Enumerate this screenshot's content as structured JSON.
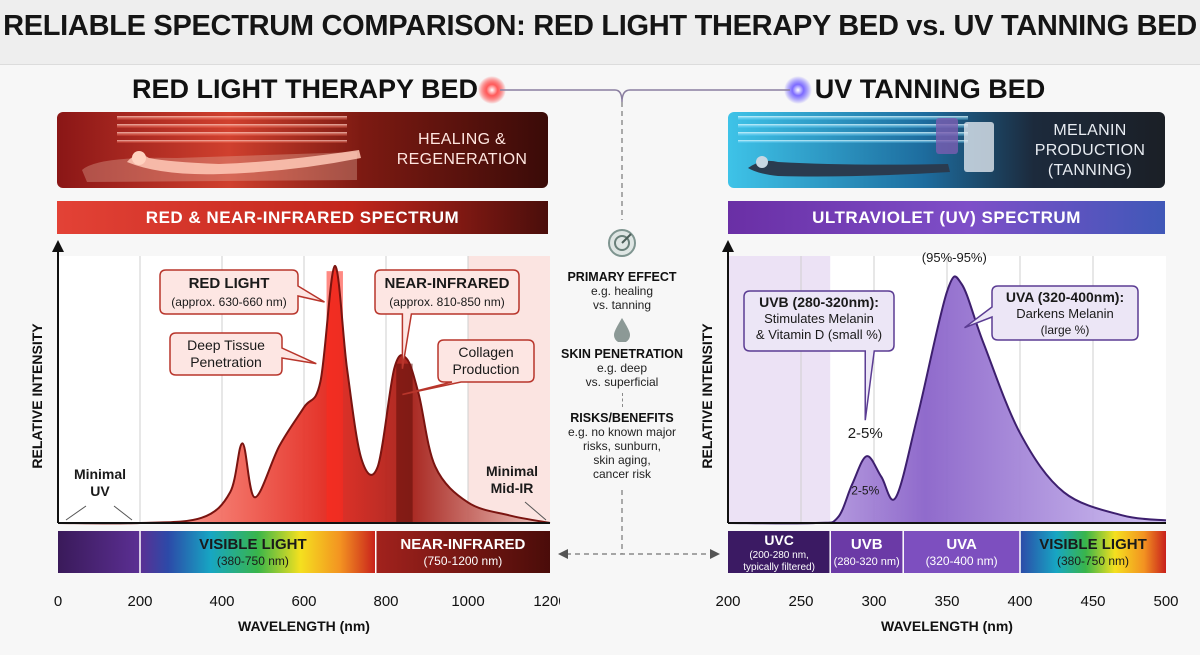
{
  "title": "RELIABLE SPECTRUM COMPARISON: RED LIGHT THERAPY BED vs. UV TANNING BED",
  "left": {
    "header": "RED LIGHT THERAPY BED",
    "banner_text": [
      "HEALING &",
      "REGENERATION"
    ],
    "spectrum_label": "RED & NEAR-INFRARED SPECTRUM",
    "ylabel": "RELATIVE INTENSITY",
    "xlabel": "WAVELENGTH (nm)"
  },
  "right": {
    "header": "UV TANNING BED",
    "banner_text": [
      "MELANIN",
      "PRODUCTION",
      "(TANNING)"
    ],
    "spectrum_label": "ULTRAVIOLET (UV) SPECTRUM",
    "ylabel": "RELATIVE INTENSITY",
    "xlabel": "WAVELENGTH (nm)"
  },
  "middle": {
    "items": [
      {
        "heading": "PRIMARY EFFECT",
        "lines": [
          "e.g. healing",
          "vs. tanning"
        ]
      },
      {
        "heading": "SKIN PENETRATION",
        "lines": [
          "e.g. deep",
          "vs. superficial"
        ]
      },
      {
        "heading": "RISKS/BENEFITS",
        "lines": [
          "e.g. no known major",
          "risks, sunburn,",
          "skin aging,",
          "cancer risk"
        ]
      }
    ]
  },
  "colors": {
    "red_accent": "#c0392b",
    "purple_accent": "#6a3fb5",
    "uv_fill": "#8a63c9"
  },
  "chart_data": [
    {
      "type": "area",
      "title": "",
      "xlabel": "WAVELENGTH (nm)",
      "ylabel": "RELATIVE INTENSITY",
      "xlim": [
        0,
        1200
      ],
      "xticks": [
        0,
        200,
        400,
        600,
        800,
        1000,
        1200
      ],
      "series": [
        {
          "values": [
            [
              0,
              0
            ],
            [
              200,
              0
            ],
            [
              350,
              0.02
            ],
            [
              420,
              0.12
            ],
            [
              450,
              0.31
            ],
            [
              480,
              0.1
            ],
            [
              540,
              0.3
            ],
            [
              600,
              0.45
            ],
            [
              640,
              0.55
            ],
            [
              675,
              1.0
            ],
            [
              705,
              0.6
            ],
            [
              740,
              0.25
            ],
            [
              780,
              0.22
            ],
            [
              820,
              0.6
            ],
            [
              850,
              0.64
            ],
            [
              880,
              0.5
            ],
            [
              920,
              0.22
            ],
            [
              1000,
              0.08
            ],
            [
              1100,
              0.03
            ],
            [
              1200,
              0.0
            ]
          ]
        }
      ],
      "regions": [
        {
          "label": "VISIBLE LIGHT",
          "sublabel": "(380-750 nm)",
          "from": 200,
          "to": 775
        },
        {
          "label": "NEAR-INFRARED",
          "sublabel": "(750-1200 nm)",
          "from": 775,
          "to": 1200
        }
      ],
      "annotations": [
        {
          "label": "RED LIGHT",
          "sublabel": "(approx. 630-660 nm)"
        },
        {
          "label": "NEAR-INFRARED",
          "sublabel": "(approx. 810-850 nm)"
        },
        {
          "label": "Deep Tissue Penetration"
        },
        {
          "label": "Collagen Production"
        },
        {
          "label": "Minimal UV"
        },
        {
          "label": "Minimal Mid-IR"
        }
      ]
    },
    {
      "type": "area",
      "title": "",
      "xlabel": "WAVELENGTH (nm)",
      "ylabel": "RELATIVE INTENSITY",
      "xlim": [
        200,
        500
      ],
      "xticks": [
        200,
        250,
        300,
        350,
        400,
        450,
        500
      ],
      "series": [
        {
          "values": [
            [
              200,
              0
            ],
            [
              260,
              0
            ],
            [
              275,
              0.02
            ],
            [
              285,
              0.15
            ],
            [
              295,
              0.26
            ],
            [
              305,
              0.18
            ],
            [
              315,
              0.1
            ],
            [
              330,
              0.42
            ],
            [
              350,
              0.9
            ],
            [
              360,
              0.93
            ],
            [
              375,
              0.7
            ],
            [
              400,
              0.35
            ],
            [
              430,
              0.12
            ],
            [
              470,
              0.03
            ],
            [
              500,
              0.01
            ]
          ]
        }
      ],
      "regions": [
        {
          "label": "UVC",
          "sublabel": "(200-280 nm, typically filtered)",
          "from": 200,
          "to": 270
        },
        {
          "label": "UVB",
          "sublabel": "(280-320 nm)",
          "from": 270,
          "to": 320
        },
        {
          "label": "UVA",
          "sublabel": "(320-400 nm)",
          "from": 320,
          "to": 400
        },
        {
          "label": "VISIBLE LIGHT",
          "sublabel": "(380-750 nm)",
          "from": 400,
          "to": 500
        }
      ],
      "annotations": [
        {
          "label": "UVB (280-320nm):",
          "sublabel": "Stimulates Melanin & Vitamin D (small %)"
        },
        {
          "label": "UVA (320-400nm):",
          "sublabel": "Darkens Melanin (large %)"
        },
        {
          "label": "2-5%"
        },
        {
          "label": "2-5%"
        },
        {
          "label": "(95%-95%)"
        }
      ]
    }
  ]
}
